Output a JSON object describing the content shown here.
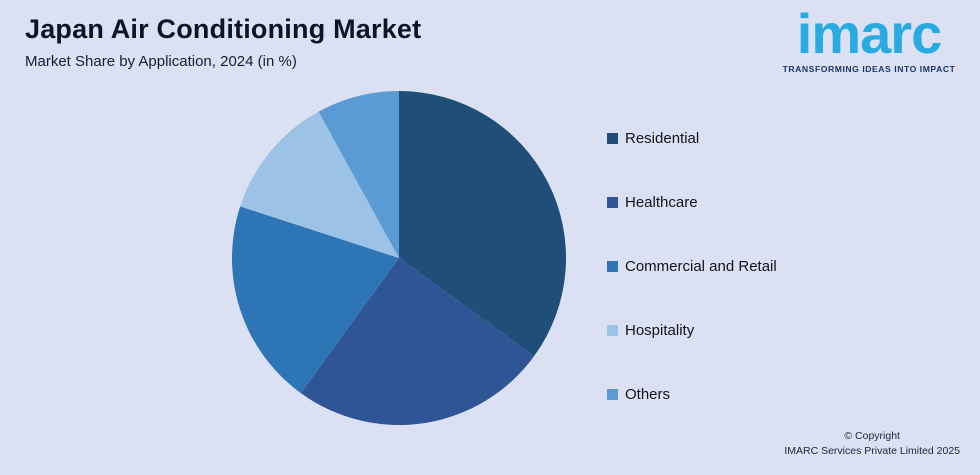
{
  "header": {
    "title": "Japan Air Conditioning Market",
    "subtitle": "Market Share by Application, 2024 (in %)"
  },
  "logo": {
    "text": "imarc",
    "tagline": "TRANSFORMING IDEAS INTO IMPACT",
    "brand_color": "#29ABE2",
    "tagline_color": "#1B3664"
  },
  "chart_data": {
    "type": "pie",
    "title": "Japan Air Conditioning Market",
    "subtitle": "Market Share by Application, 2024 (in %)",
    "categories": [
      "Residential",
      "Healthcare",
      "Commercial and Retail",
      "Hospitality",
      "Others"
    ],
    "values": [
      35,
      25,
      20,
      12,
      8
    ],
    "colors": [
      "#1F4E79",
      "#2F5596",
      "#2E75B6",
      "#9CC3E6",
      "#5B9BD5"
    ],
    "start_angle_deg": 0,
    "direction": "clockwise",
    "legend_position": "right",
    "background_color": "#DBE1F2"
  },
  "footer": {
    "copyright_line1": "© Copyright",
    "copyright_line2": "IMARC Services Private Limited 2025"
  }
}
